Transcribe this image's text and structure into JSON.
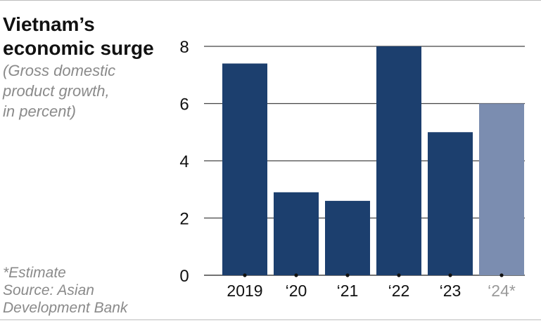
{
  "title_line1": "Vietnam’s",
  "title_line2": "economic surge",
  "subtitle_line1": "(Gross domestic",
  "subtitle_line2": "product growth,",
  "subtitle_line3": "in percent)",
  "footnote_line1": "*Estimate",
  "footnote_line2": "Source: Asian",
  "footnote_line3": "Development Bank",
  "colors": {
    "bar": "#1c3f6e",
    "bar_estimate": "#7b8db0",
    "grid": "#444444",
    "tick_label": "#111111",
    "tick_label_estimate": "#9a9a9a"
  },
  "chart_data": {
    "type": "bar",
    "title": "Vietnam’s economic surge",
    "subtitle": "(Gross domestic product growth, in percent)",
    "categories": [
      "2019",
      "‘20",
      "‘21",
      "‘22",
      "‘23",
      "‘24*"
    ],
    "values": [
      7.4,
      2.9,
      2.6,
      8.0,
      5.0,
      6.0
    ],
    "estimate": [
      false,
      false,
      false,
      false,
      false,
      true
    ],
    "yticks": [
      0,
      2,
      4,
      6,
      8
    ],
    "ylim": [
      0,
      8
    ],
    "xlabel": "",
    "ylabel": "",
    "grid": true
  }
}
